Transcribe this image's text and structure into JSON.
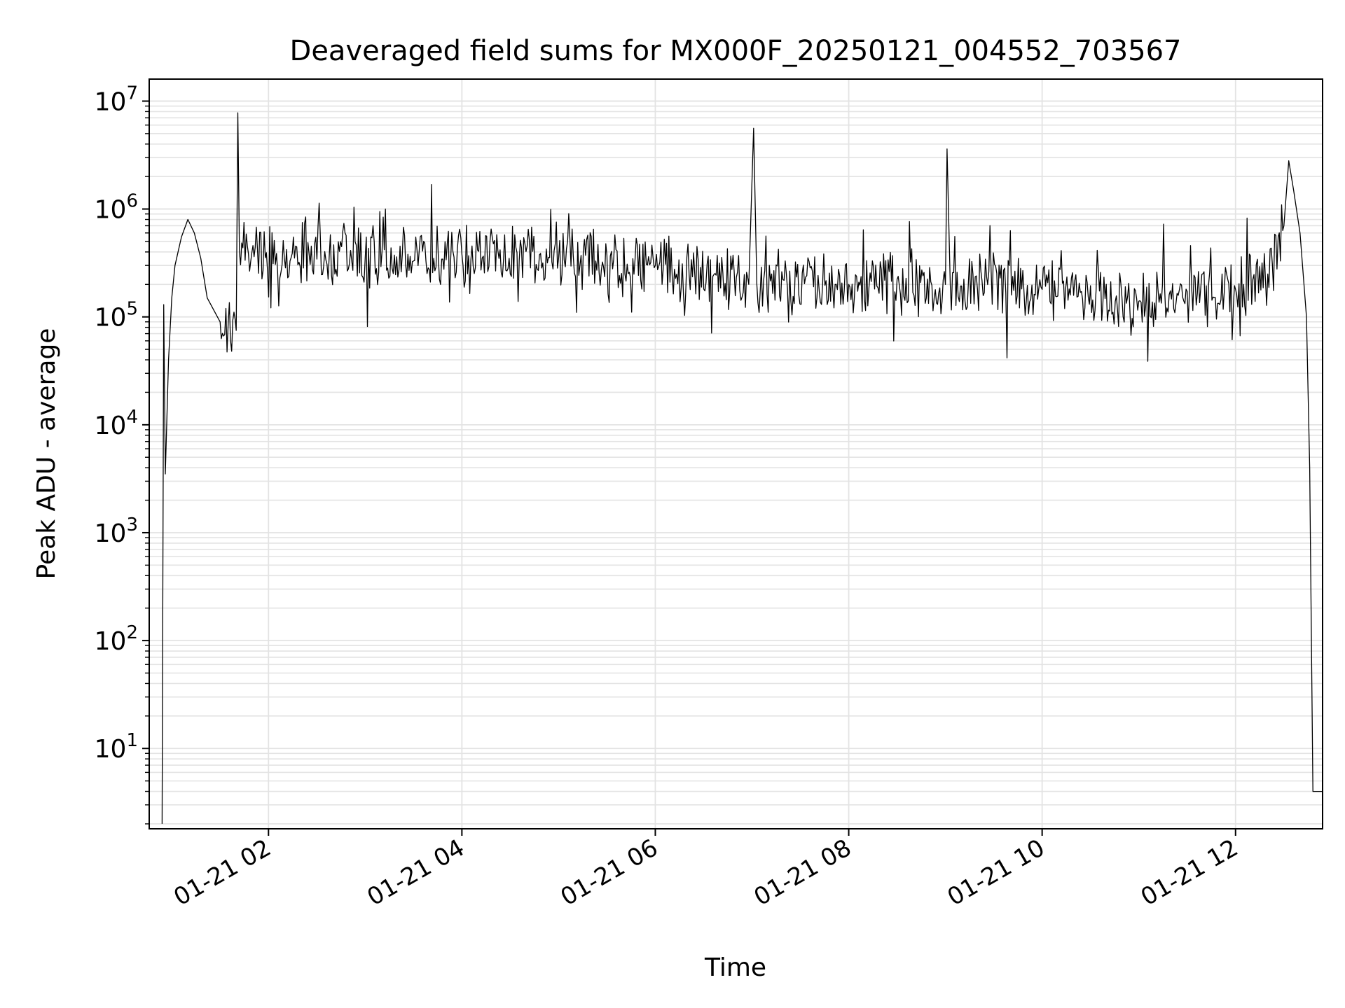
{
  "chart_data": {
    "type": "line",
    "title": "Deaveraged field sums for MX000F_20250121_004552_703567",
    "xlabel": "Time",
    "ylabel": "Peak ADU - average",
    "yscale": "log",
    "xlim": [
      "2025-01-21T00:46",
      "2025-01-21T12:54"
    ],
    "ylim": [
      1.8,
      16000000
    ],
    "grid": true,
    "x_ticks": [
      {
        "t": "2025-01-21T02:00",
        "label": "01-21 02"
      },
      {
        "t": "2025-01-21T04:00",
        "label": "01-21 04"
      },
      {
        "t": "2025-01-21T06:00",
        "label": "01-21 06"
      },
      {
        "t": "2025-01-21T08:00",
        "label": "01-21 08"
      },
      {
        "t": "2025-01-21T10:00",
        "label": "01-21 10"
      },
      {
        "t": "2025-01-21T12:00",
        "label": "01-21 12"
      }
    ],
    "y_ticks": [
      {
        "value": 10,
        "base": "10",
        "exp": "1"
      },
      {
        "value": 100,
        "base": "10",
        "exp": "2"
      },
      {
        "value": 1000,
        "base": "10",
        "exp": "3"
      },
      {
        "value": 10000,
        "base": "10",
        "exp": "4"
      },
      {
        "value": 100000,
        "base": "10",
        "exp": "5"
      },
      {
        "value": 1000000,
        "base": "10",
        "exp": "6"
      },
      {
        "value": 10000000,
        "base": "10",
        "exp": "7"
      }
    ],
    "series": [
      {
        "color": "#000000",
        "points": [
          [
            "2025-01-21T00:54",
            2
          ],
          [
            "2025-01-21T00:55",
            130000
          ],
          [
            "2025-01-21T00:56",
            3500
          ],
          [
            "2025-01-21T00:58",
            40000
          ],
          [
            "2025-01-21T01:00",
            150000
          ],
          [
            "2025-01-21T01:02",
            300000
          ],
          [
            "2025-01-21T01:06",
            550000
          ],
          [
            "2025-01-21T01:10",
            800000
          ],
          [
            "2025-01-21T01:14",
            600000
          ],
          [
            "2025-01-21T01:18",
            350000
          ],
          [
            "2025-01-21T01:22",
            150000
          ],
          [
            "2025-01-21T01:30",
            90000
          ],
          [
            "2025-01-21T01:40",
            75000
          ],
          [
            "2025-01-21T01:41",
            7800000
          ],
          [
            "2025-01-21T01:42",
            400000
          ],
          [
            "2025-01-21T03:00",
            350000
          ],
          [
            "2025-01-21T04:00",
            380000
          ],
          [
            "2025-01-21T05:00",
            350000
          ],
          [
            "2025-01-21T06:00",
            300000
          ],
          [
            "2025-01-21T06:58",
            200000
          ],
          [
            "2025-01-21T07:01",
            5600000
          ],
          [
            "2025-01-21T07:03",
            200000
          ],
          [
            "2025-01-21T08:00",
            200000
          ],
          [
            "2025-01-21T09:00",
            200000
          ],
          [
            "2025-01-21T09:01",
            3600000
          ],
          [
            "2025-01-21T09:03",
            200000
          ],
          [
            "2025-01-21T10:00",
            180000
          ],
          [
            "2025-01-21T11:00",
            140000
          ],
          [
            "2025-01-21T12:00",
            180000
          ],
          [
            "2025-01-21T12:20",
            250000
          ],
          [
            "2025-01-21T12:30",
            700000
          ],
          [
            "2025-01-21T12:33",
            2800000
          ],
          [
            "2025-01-21T12:36",
            1500000
          ],
          [
            "2025-01-21T12:40",
            600000
          ],
          [
            "2025-01-21T12:44",
            100000
          ],
          [
            "2025-01-21T12:46",
            4000
          ],
          [
            "2025-01-21T12:48",
            4
          ],
          [
            "2025-01-21T12:54",
            4
          ]
        ]
      }
    ]
  }
}
